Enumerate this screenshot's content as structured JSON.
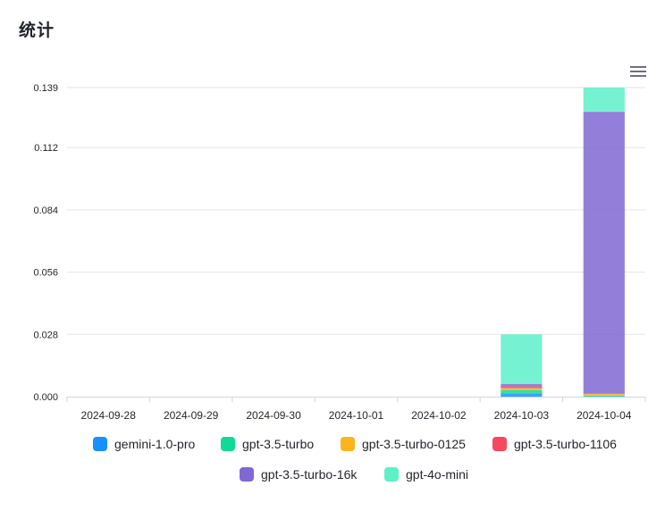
{
  "page": {
    "title": "统计"
  },
  "toolbar": {
    "menu_icon": "hamburger-menu-icon"
  },
  "chart_data": {
    "type": "bar",
    "stacked": true,
    "title": "",
    "xlabel": "",
    "ylabel": "",
    "categories": [
      "2024-09-28",
      "2024-09-29",
      "2024-09-30",
      "2024-10-01",
      "2024-10-02",
      "2024-10-03",
      "2024-10-04"
    ],
    "ylim": [
      0,
      0.139
    ],
    "yticks": [
      "0.000",
      "0.028",
      "0.056",
      "0.084",
      "0.112",
      "0.139"
    ],
    "grid": true,
    "legend_position": "bottom",
    "series": [
      {
        "name": "gemini-1.0-pro",
        "color": "#1890ff",
        "values": [
          0,
          0,
          0,
          0,
          0,
          0.0015,
          0
        ]
      },
      {
        "name": "gpt-3.5-turbo",
        "color": "#0fdb95",
        "values": [
          0,
          0,
          0,
          0,
          0,
          0.0015,
          0.0005
        ]
      },
      {
        "name": "gpt-3.5-turbo-0125",
        "color": "#fcb41c",
        "values": [
          0,
          0,
          0,
          0,
          0,
          0.0008,
          0.0007
        ]
      },
      {
        "name": "gpt-3.5-turbo-1106",
        "color": "#f6485f",
        "values": [
          0,
          0,
          0,
          0,
          0,
          0.0008,
          0.0003
        ]
      },
      {
        "name": "gpt-3.5-turbo-16k",
        "color": "#8068d4",
        "values": [
          0,
          0,
          0,
          0,
          0,
          0.0011,
          0.1266
        ]
      },
      {
        "name": "gpt-4o-mini",
        "color": "#5df0c9",
        "values": [
          0,
          0,
          0,
          0,
          0,
          0.0223,
          0.0109
        ]
      }
    ]
  }
}
